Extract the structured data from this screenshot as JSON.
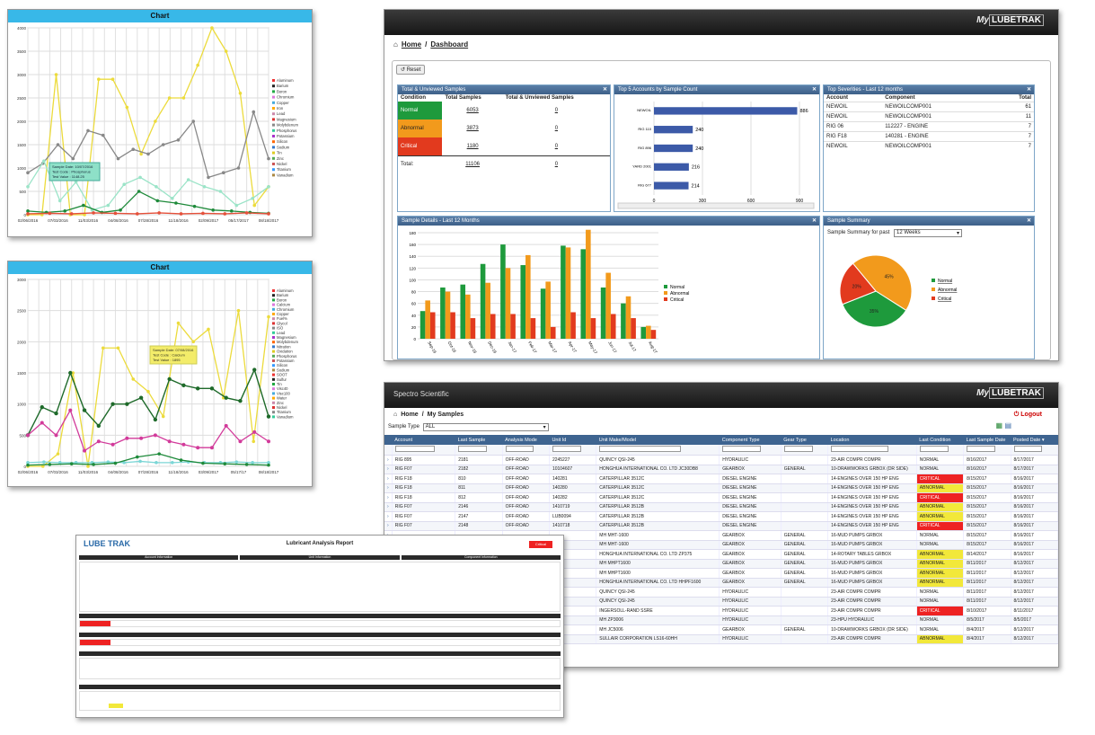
{
  "colors": {
    "normal": "#1e9a3c",
    "abnormal": "#f29a1c",
    "critical": "#e23a1e",
    "accent": "#38b8e8"
  },
  "chart1": {
    "title": "Chart",
    "yticks": [
      "4000",
      "3500",
      "3000",
      "2500",
      "2000",
      "1500",
      "1000",
      "500",
      "0"
    ],
    "xticks": [
      "02/06/2016",
      "07/03/2016",
      "11/03/2016",
      "04/08/2016",
      "07/28/2016",
      "11/18/2016",
      "02/09/2017",
      "05/17/2017",
      "08/18/2017"
    ],
    "legend": [
      "Aluminum",
      "Barium",
      "Boron",
      "Chromium",
      "Copper",
      "Iron",
      "Lead",
      "Magnesium",
      "Molybdenum",
      "Phosphorus",
      "Potassium",
      "Silicon",
      "Sodium",
      "Tin",
      "Zinc",
      "Nickel",
      "Titanium",
      "Vanadium"
    ],
    "tooltip": [
      "Sample Date: 10/07/2016",
      "Test Code : Phosphorus",
      "Test Value : 1148.25"
    ]
  },
  "chart2": {
    "title": "Chart",
    "yticks": [
      "3000",
      "2500",
      "2000",
      "1500",
      "1000",
      "500",
      "0"
    ],
    "xticks": [
      "02/06/2016",
      "07/03/2016",
      "11/03/2016",
      "04/08/2016",
      "07/28/2016",
      "11/18/2016",
      "03/09/2017",
      "05/17/17",
      "08/18/2017"
    ],
    "legend": [
      "Aluminum",
      "Barium",
      "Boron",
      "Calcium",
      "Chromium",
      "Copper",
      "Fuel%",
      "Glycol",
      "ISO",
      "Lead",
      "Magnesium",
      "Molybdenum",
      "Nitration",
      "Oxidation",
      "Phosphorus",
      "Potassium",
      "Silicon",
      "Sodium",
      "SOOT",
      "Sulfur",
      "Tin",
      "Visc40",
      "Visc100",
      "Water",
      "Zinc",
      "Nickel",
      "Titanium",
      "Vanadium"
    ],
    "tooltip": [
      "Sample Date: 07/08/2016",
      "Test Code : Calcium",
      "Test Value : 1895"
    ]
  },
  "dashboard": {
    "crumb_home": "Home",
    "crumb_page": "Dashboard",
    "reset_label": "Reset",
    "p1": {
      "title": "Total & Unviewed Samples",
      "headers": [
        "Condition",
        "Total Samples",
        "Total & Unviewed Samples"
      ],
      "rows": [
        {
          "cond": "Normal",
          "total": "6053",
          "unv": "0"
        },
        {
          "cond": "Abnormal",
          "total": "3873",
          "unv": "0"
        },
        {
          "cond": "Critical",
          "total": "1180",
          "unv": "0"
        }
      ],
      "total_label": "Total:",
      "total": "11106",
      "total_unv": "0"
    },
    "p2": {
      "title": "Top 5 Accounts by Sample Count",
      "bars": [
        {
          "label": "NEWOIL",
          "value": 886,
          "text": "886"
        },
        {
          "label": "RIG 110",
          "value": 240,
          "text": "240"
        },
        {
          "label": "RIG 896",
          "value": 240,
          "text": "240"
        },
        {
          "label": "YARD 2001",
          "value": 216,
          "text": "216"
        },
        {
          "label": "RIG 677",
          "value": 214,
          "text": "214"
        }
      ],
      "xticks": [
        "0",
        "300",
        "600",
        "900"
      ]
    },
    "p3": {
      "title": "Top Severities - Last 12 months",
      "headers": [
        "Account",
        "Component",
        "Total"
      ],
      "rows": [
        [
          "NEWOIL",
          "NEWOILCOMP001",
          "61"
        ],
        [
          "NEWOIL",
          "NEWOILCOMP001",
          "11"
        ],
        [
          "RIG 06",
          "112227 - ENGINE",
          "7"
        ],
        [
          "RIG F18",
          "140281 - ENGINE",
          "7"
        ],
        [
          "NEWOIL",
          "NEWOILCOMP001",
          "7"
        ]
      ]
    },
    "p4": {
      "title": "Sample Details - Last 12 Months",
      "yticks": [
        "180",
        "160",
        "140",
        "120",
        "100",
        "80",
        "60",
        "40",
        "20",
        "0"
      ],
      "months": [
        "Sep-16",
        "Oct-16",
        "Nov-16",
        "Dec-16",
        "Jan-17",
        "Feb-17",
        "Mar-17",
        "Apr-17",
        "May-17",
        "Jun-17",
        "Jul-17",
        "Aug-17"
      ],
      "normal": [
        47,
        87,
        92,
        127,
        160,
        125,
        85,
        158,
        152,
        87,
        60,
        20
      ],
      "abnormal": [
        65,
        80,
        75,
        95,
        120,
        142,
        97,
        155,
        185,
        112,
        72,
        22
      ],
      "critical": [
        45,
        45,
        35,
        42,
        42,
        35,
        20,
        45,
        35,
        42,
        35,
        15
      ],
      "legend": [
        "Normal",
        "Abnormal",
        "Critical"
      ]
    },
    "p5": {
      "title": "Sample Summary",
      "label": "Sample Summary for past",
      "select": "12 Weeks",
      "slices": [
        {
          "name": "Normal",
          "pct": 35,
          "text": "35%"
        },
        {
          "name": "Abnormal",
          "pct": 45,
          "text": "45%"
        },
        {
          "name": "Critical",
          "pct": 20,
          "text": "20%"
        }
      ]
    }
  },
  "samples": {
    "brand": "Spectro Scientific",
    "crumb_home": "Home",
    "crumb_page": "My Samples",
    "logout": "Logout",
    "type_label": "Sample Type",
    "type_value": "ALL",
    "headers": [
      "Account",
      "Last Sample",
      "Analysis Mode",
      "Unit Id",
      "Unit Make/Model",
      "Component Type",
      "Gear Type",
      "Location",
      "Last Condition",
      "Last Sample Date",
      "Posted Date"
    ],
    "rows": [
      [
        "RIG 895",
        "2181",
        "OFF-ROAD",
        "2245227",
        "QUINCY QSI-245",
        "HYDRAULIC",
        "",
        "23-AIR COMPR COMPR",
        "NORMAL",
        "8/16/2017",
        "8/17/2017"
      ],
      [
        "RIG F07",
        "2182",
        "OFF-ROAD",
        "10104607",
        "HONGHUA INTERNATIONAL CO. LTD JC30DB8",
        "GEARBOX",
        "GENERAL",
        "10-DRAWWORKS GRBOX (DR SIDE)",
        "NORMAL",
        "8/16/2017",
        "8/17/2017"
      ],
      [
        "RIG F18",
        "810",
        "OFF-ROAD",
        "140281",
        "CATERPILLAR 3512C",
        "DIESEL ENGINE",
        "",
        "14-ENGINES OVER 150 HP ENG",
        "CRITICAL",
        "8/15/2017",
        "8/16/2017"
      ],
      [
        "RIG F18",
        "811",
        "OFF-ROAD",
        "140280",
        "CATERPILLAR 3512C",
        "DIESEL ENGINE",
        "",
        "14-ENGINES OVER 150 HP ENG",
        "ABNORMAL",
        "8/15/2017",
        "8/16/2017"
      ],
      [
        "RIG F18",
        "812",
        "OFF-ROAD",
        "140282",
        "CATERPILLAR 3512C",
        "DIESEL ENGINE",
        "",
        "14-ENGINES OVER 150 HP ENG",
        "CRITICAL",
        "8/15/2017",
        "8/16/2017"
      ],
      [
        "RIG F07",
        "2146",
        "OFF-ROAD",
        "1410719",
        "CATERPILLAR 3512B",
        "DIESEL ENGINE",
        "",
        "14-ENGINES OVER 150 HP ENG",
        "ABNORMAL",
        "8/15/2017",
        "8/16/2017"
      ],
      [
        "RIG F07",
        "2147",
        "OFF-ROAD",
        "LUB0094",
        "CATERPILLAR 3512B",
        "DIESEL ENGINE",
        "",
        "14-ENGINES OVER 150 HP ENG",
        "ABNORMAL",
        "8/15/2017",
        "8/16/2017"
      ],
      [
        "RIG F07",
        "2148",
        "OFF-ROAD",
        "1410718",
        "CATERPILLAR 3512B",
        "DIESEL ENGINE",
        "",
        "14-ENGINES OVER 150 HP ENG",
        "CRITICAL",
        "8/15/2017",
        "8/16/2017"
      ],
      [
        "",
        "",
        "",
        "",
        "MH MHT-1600",
        "GEARBOX",
        "GENERAL",
        "16-MUD PUMPS GRBOX",
        "NORMAL",
        "8/15/2017",
        "8/16/2017"
      ],
      [
        "",
        "",
        "",
        "",
        "MH MHT-1600",
        "GEARBOX",
        "GENERAL",
        "16-MUD PUMPS GRBOX",
        "NORMAL",
        "8/15/2017",
        "8/16/2017"
      ],
      [
        "",
        "",
        "",
        "",
        "HONGHUA INTERNATIONAL CO. LTD ZP375",
        "GEARBOX",
        "GENERAL",
        "14-ROTARY TABLES GRBOX",
        "ABNORMAL",
        "8/14/2017",
        "8/16/2017"
      ],
      [
        "",
        "",
        "",
        "",
        "MH MHPT1600",
        "GEARBOX",
        "GENERAL",
        "16-MUD PUMPS GRBOX",
        "ABNORMAL",
        "8/11/2017",
        "8/12/2017"
      ],
      [
        "",
        "",
        "",
        "",
        "MH MHPT1600",
        "GEARBOX",
        "GENERAL",
        "16-MUD PUMPS GRBOX",
        "ABNORMAL",
        "8/11/2017",
        "8/12/2017"
      ],
      [
        "",
        "",
        "",
        "",
        "HONGHUA INTERNATIONAL CO. LTD HHPF1600",
        "GEARBOX",
        "GENERAL",
        "16-MUD PUMPS GRBOX",
        "ABNORMAL",
        "8/11/2017",
        "8/12/2017"
      ],
      [
        "",
        "",
        "",
        "",
        "QUINCY QSI-245",
        "HYDRAULIC",
        "",
        "23-AIR COMPR COMPR",
        "NORMAL",
        "8/11/2017",
        "8/12/2017"
      ],
      [
        "",
        "",
        "",
        "",
        "QUINCY QSI-245",
        "HYDRAULIC",
        "",
        "23-AIR COMPR COMPR",
        "NORMAL",
        "8/11/2017",
        "8/12/2017"
      ],
      [
        "",
        "",
        "",
        "",
        "INGERSOLL-RAND SSRE",
        "HYDRAULIC",
        "",
        "23-AIR COMPR COMPR",
        "CRITICAL",
        "8/10/2017",
        "8/11/2017"
      ],
      [
        "",
        "",
        "",
        "",
        "MH ZP3006",
        "HYDRAULIC",
        "",
        "23-HPU HYDRAULIC",
        "NORMAL",
        "8/5/2017",
        "8/5/2017"
      ],
      [
        "",
        "",
        "",
        "",
        "MH JC5006",
        "GEARBOX",
        "GENERAL",
        "10-DRAWWORKS GRBOX (DR SIDE)",
        "NORMAL",
        "8/4/2017",
        "8/12/2017"
      ],
      [
        "",
        "",
        "",
        "",
        "SULLAIR CORPORATION LS16-60HH",
        "HYDRAULIC",
        "",
        "23-AIR COMPR COMPR",
        "ABNORMAL",
        "8/4/2017",
        "8/12/2017"
      ]
    ]
  },
  "report": {
    "title": "Lubricant Analysis Report",
    "sections": [
      "Account Information",
      "Unit Information",
      "Component Information"
    ],
    "status": "Critical"
  }
}
